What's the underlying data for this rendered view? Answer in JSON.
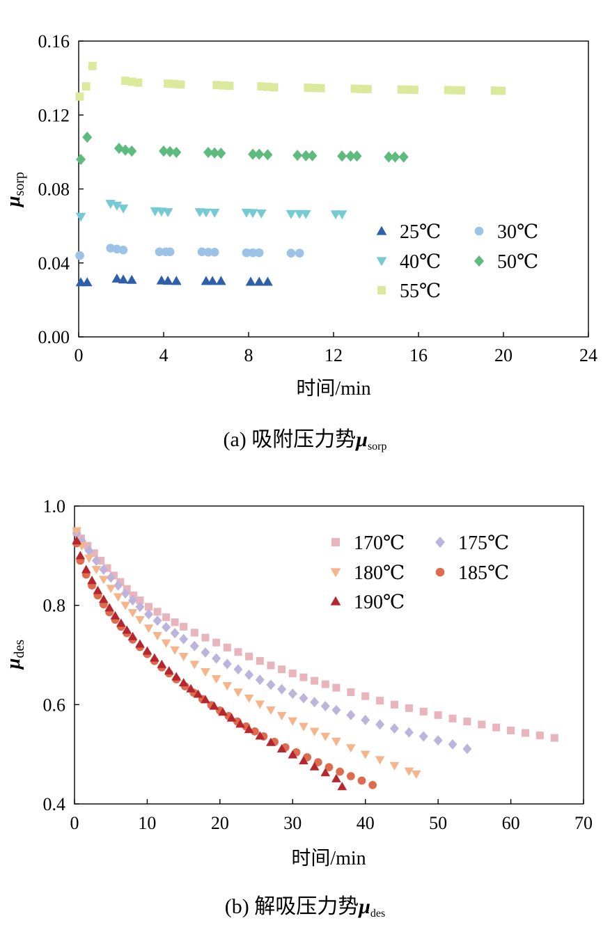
{
  "chart_data": [
    {
      "type": "scatter",
      "xlabel": "时间/min",
      "ylabel": "μ",
      "ylabel_sub": "sorp",
      "xlim": [
        0,
        24
      ],
      "ylim": [
        0.0,
        0.16
      ],
      "xticks": [
        "0",
        "4",
        "8",
        "12",
        "16",
        "20",
        "24"
      ],
      "xtick_values": [
        0,
        4,
        8,
        12,
        16,
        20,
        24
      ],
      "yticks": [
        "0.00",
        "0.04",
        "0.08",
        "0.12",
        "0.16"
      ],
      "ytick_values": [
        0.0,
        0.04,
        0.08,
        0.12,
        0.16
      ],
      "grid": false,
      "legend_position": "bottom-right",
      "caption_prefix": "(a) 吸附压力势",
      "caption_mu": "μ",
      "caption_sub": "sorp",
      "series": [
        {
          "name": "25℃",
          "marker": "triangle-up",
          "color": "#2e5fa8",
          "x": [
            0.1,
            0.4,
            1.8,
            2.1,
            2.5,
            3.9,
            4.2,
            4.6,
            6.0,
            6.3,
            6.7,
            8.1,
            8.5,
            8.9
          ],
          "y": [
            0.0295,
            0.0295,
            0.0315,
            0.031,
            0.0308,
            0.0305,
            0.0303,
            0.0302,
            0.0302,
            0.0302,
            0.0302,
            0.0298,
            0.0298,
            0.0298
          ]
        },
        {
          "name": "30℃",
          "marker": "circle",
          "color": "#9cc3e6",
          "x": [
            0.05,
            1.5,
            1.8,
            2.1,
            3.8,
            4.1,
            4.3,
            5.8,
            6.1,
            6.4,
            7.9,
            8.2,
            8.5,
            10.0,
            10.4
          ],
          "y": [
            0.044,
            0.048,
            0.0475,
            0.047,
            0.046,
            0.046,
            0.046,
            0.046,
            0.0458,
            0.0458,
            0.0455,
            0.0455,
            0.0455,
            0.0453,
            0.0453
          ]
        },
        {
          "name": "40℃",
          "marker": "triangle-down",
          "color": "#76cbd3",
          "x": [
            0.1,
            1.5,
            1.8,
            2.1,
            3.6,
            3.9,
            4.2,
            5.7,
            6.0,
            6.4,
            7.9,
            8.2,
            8.6,
            10.0,
            10.4,
            10.7,
            12.1,
            12.4
          ],
          "y": [
            0.065,
            0.072,
            0.071,
            0.0695,
            0.068,
            0.0678,
            0.0675,
            0.0675,
            0.0673,
            0.0672,
            0.0672,
            0.067,
            0.0668,
            0.0665,
            0.0665,
            0.0665,
            0.0663,
            0.0663
          ]
        },
        {
          "name": "50℃",
          "marker": "diamond",
          "color": "#5dbb7d",
          "x": [
            0.1,
            0.4,
            1.9,
            2.2,
            2.5,
            4.0,
            4.3,
            4.6,
            6.1,
            6.4,
            6.7,
            8.2,
            8.5,
            8.9,
            10.3,
            10.7,
            11.0,
            12.4,
            12.8,
            13.1,
            14.6,
            14.9,
            15.3
          ],
          "y": [
            0.096,
            0.108,
            0.102,
            0.101,
            0.1005,
            0.1005,
            0.1002,
            0.0998,
            0.0998,
            0.0995,
            0.0993,
            0.0988,
            0.0988,
            0.0985,
            0.0982,
            0.098,
            0.098,
            0.0978,
            0.0978,
            0.0978,
            0.0973,
            0.0973,
            0.0973
          ]
        },
        {
          "name": "55℃",
          "marker": "square",
          "color": "#dbe99c",
          "x": [
            0.05,
            0.35,
            0.65,
            2.2,
            2.5,
            2.8,
            4.2,
            4.5,
            4.8,
            6.5,
            6.8,
            7.1,
            8.6,
            8.9,
            9.2,
            10.8,
            11.1,
            11.4,
            13.0,
            13.3,
            13.6,
            15.2,
            15.5,
            15.8,
            17.4,
            17.7,
            18.0,
            19.6,
            19.9
          ],
          "y": [
            0.13,
            0.1355,
            0.1465,
            0.1385,
            0.138,
            0.1375,
            0.137,
            0.1368,
            0.1365,
            0.1362,
            0.136,
            0.1358,
            0.1355,
            0.1352,
            0.135,
            0.1348,
            0.1346,
            0.1345,
            0.1342,
            0.1341,
            0.134,
            0.1338,
            0.1337,
            0.1336,
            0.1335,
            0.1334,
            0.1333,
            0.1332,
            0.1331
          ]
        }
      ]
    },
    {
      "type": "scatter",
      "xlabel": "时间/min",
      "ylabel": "μ",
      "ylabel_sub": "des",
      "xlim": [
        0,
        70
      ],
      "ylim": [
        0.4,
        1.0
      ],
      "xticks": [
        "0",
        "10",
        "20",
        "30",
        "40",
        "50",
        "60",
        "70"
      ],
      "xtick_values": [
        0,
        10,
        20,
        30,
        40,
        50,
        60,
        70
      ],
      "yticks": [
        "0.4",
        "0.6",
        "0.8",
        "1.0"
      ],
      "ytick_values": [
        0.4,
        0.6,
        0.8,
        1.0
      ],
      "grid": false,
      "legend_position": "top-right",
      "caption_prefix": "(b) 解吸压力势",
      "caption_mu": "μ",
      "caption_sub": "des",
      "series": [
        {
          "name": "170℃",
          "marker": "square",
          "color": "#e8b5bd",
          "x": [
            0.3,
            0.9,
            1.8,
            2.7,
            3.6,
            4.5,
            5.4,
            6.3,
            7.2,
            8.1,
            9.0,
            10.2,
            11.4,
            12.6,
            13.8,
            15.0,
            16.5,
            18.0,
            19.5,
            21.0,
            22.5,
            24.0,
            25.5,
            27.0,
            28.5,
            30.0,
            31.5,
            33.0,
            34.5,
            36.0,
            38.0,
            40.0,
            42.0,
            44.0,
            46.0,
            48.0,
            50.0,
            52.0,
            54.0,
            56.0,
            58.0,
            60.0,
            62.0,
            64.0,
            66.0
          ],
          "y": [
            0.947,
            0.935,
            0.92,
            0.905,
            0.89,
            0.875,
            0.86,
            0.847,
            0.833,
            0.82,
            0.81,
            0.797,
            0.787,
            0.776,
            0.766,
            0.757,
            0.745,
            0.735,
            0.725,
            0.715,
            0.706,
            0.697,
            0.688,
            0.679,
            0.671,
            0.663,
            0.655,
            0.648,
            0.641,
            0.634,
            0.625,
            0.617,
            0.608,
            0.6,
            0.593,
            0.586,
            0.579,
            0.572,
            0.566,
            0.56,
            0.554,
            0.548,
            0.543,
            0.538,
            0.533
          ]
        },
        {
          "name": "175℃",
          "marker": "diamond",
          "color": "#bdb4db",
          "x": [
            0.3,
            1.0,
            2.0,
            3.0,
            4.0,
            5.0,
            6.0,
            7.0,
            8.0,
            9.0,
            10.2,
            11.4,
            12.6,
            13.8,
            15.0,
            16.5,
            18.0,
            19.5,
            21.0,
            22.5,
            24.0,
            25.5,
            27.0,
            28.5,
            30.0,
            31.5,
            33.0,
            34.5,
            36.0,
            38.0,
            40.0,
            42.0,
            44.0,
            46.0,
            48.0,
            50.0,
            52.0,
            54.0
          ],
          "y": [
            0.945,
            0.93,
            0.91,
            0.89,
            0.872,
            0.856,
            0.84,
            0.824,
            0.81,
            0.797,
            0.782,
            0.769,
            0.756,
            0.744,
            0.732,
            0.718,
            0.705,
            0.693,
            0.682,
            0.671,
            0.66,
            0.65,
            0.64,
            0.631,
            0.622,
            0.613,
            0.605,
            0.597,
            0.589,
            0.579,
            0.569,
            0.56,
            0.552,
            0.544,
            0.536,
            0.528,
            0.52,
            0.511
          ]
        },
        {
          "name": "180℃",
          "marker": "triangle-down",
          "color": "#f5b48a",
          "x": [
            0.3,
            1.0,
            2.0,
            3.0,
            4.0,
            5.0,
            6.0,
            7.0,
            8.0,
            9.0,
            10.2,
            11.4,
            12.6,
            13.8,
            15.0,
            16.5,
            18.0,
            19.5,
            21.0,
            22.5,
            24.0,
            25.5,
            27.0,
            28.5,
            30.0,
            31.5,
            33.0,
            34.5,
            36.0,
            38.0,
            40.0,
            42.0,
            44.0,
            46.0,
            47.0
          ],
          "y": [
            0.95,
            0.92,
            0.895,
            0.872,
            0.852,
            0.834,
            0.817,
            0.8,
            0.785,
            0.771,
            0.754,
            0.739,
            0.724,
            0.71,
            0.697,
            0.681,
            0.666,
            0.652,
            0.638,
            0.625,
            0.613,
            0.601,
            0.589,
            0.578,
            0.567,
            0.556,
            0.546,
            0.536,
            0.526,
            0.513,
            0.5,
            0.489,
            0.477,
            0.466,
            0.46
          ]
        },
        {
          "name": "185℃",
          "marker": "circle",
          "color": "#de6b4e",
          "x": [
            0.3,
            0.8,
            1.6,
            2.4,
            3.2,
            4.0,
            4.8,
            5.6,
            6.4,
            7.2,
            8.0,
            9.0,
            10.0,
            11.0,
            12.0,
            13.0,
            14.0,
            15.2,
            16.4,
            17.6,
            18.8,
            20.0,
            21.2,
            22.4,
            23.6,
            24.8,
            26.0,
            27.5,
            29.0,
            30.5,
            32.0,
            33.5,
            35.0,
            36.5,
            38.0,
            39.5,
            41.0
          ],
          "y": [
            0.925,
            0.89,
            0.862,
            0.84,
            0.82,
            0.802,
            0.786,
            0.771,
            0.757,
            0.744,
            0.731,
            0.716,
            0.702,
            0.688,
            0.675,
            0.663,
            0.651,
            0.637,
            0.624,
            0.611,
            0.599,
            0.588,
            0.577,
            0.566,
            0.556,
            0.546,
            0.536,
            0.525,
            0.514,
            0.504,
            0.494,
            0.484,
            0.474,
            0.465,
            0.456,
            0.447,
            0.438
          ]
        },
        {
          "name": "190℃",
          "marker": "triangle-up",
          "color": "#b5262e",
          "x": [
            0.3,
            0.8,
            1.6,
            2.4,
            3.2,
            4.0,
            4.8,
            5.6,
            6.4,
            7.2,
            8.0,
            9.0,
            10.0,
            11.0,
            12.0,
            13.0,
            14.0,
            15.0,
            16.0,
            17.0,
            18.0,
            19.2,
            20.4,
            21.6,
            22.8,
            24.0,
            25.5,
            27.0,
            28.5,
            30.0,
            31.5,
            33.0,
            34.5,
            36.0,
            36.8
          ],
          "y": [
            0.93,
            0.9,
            0.872,
            0.85,
            0.83,
            0.812,
            0.795,
            0.779,
            0.764,
            0.75,
            0.737,
            0.722,
            0.708,
            0.694,
            0.681,
            0.668,
            0.656,
            0.644,
            0.632,
            0.621,
            0.61,
            0.597,
            0.585,
            0.573,
            0.561,
            0.55,
            0.537,
            0.524,
            0.511,
            0.499,
            0.487,
            0.475,
            0.463,
            0.451,
            0.435
          ]
        }
      ]
    }
  ]
}
